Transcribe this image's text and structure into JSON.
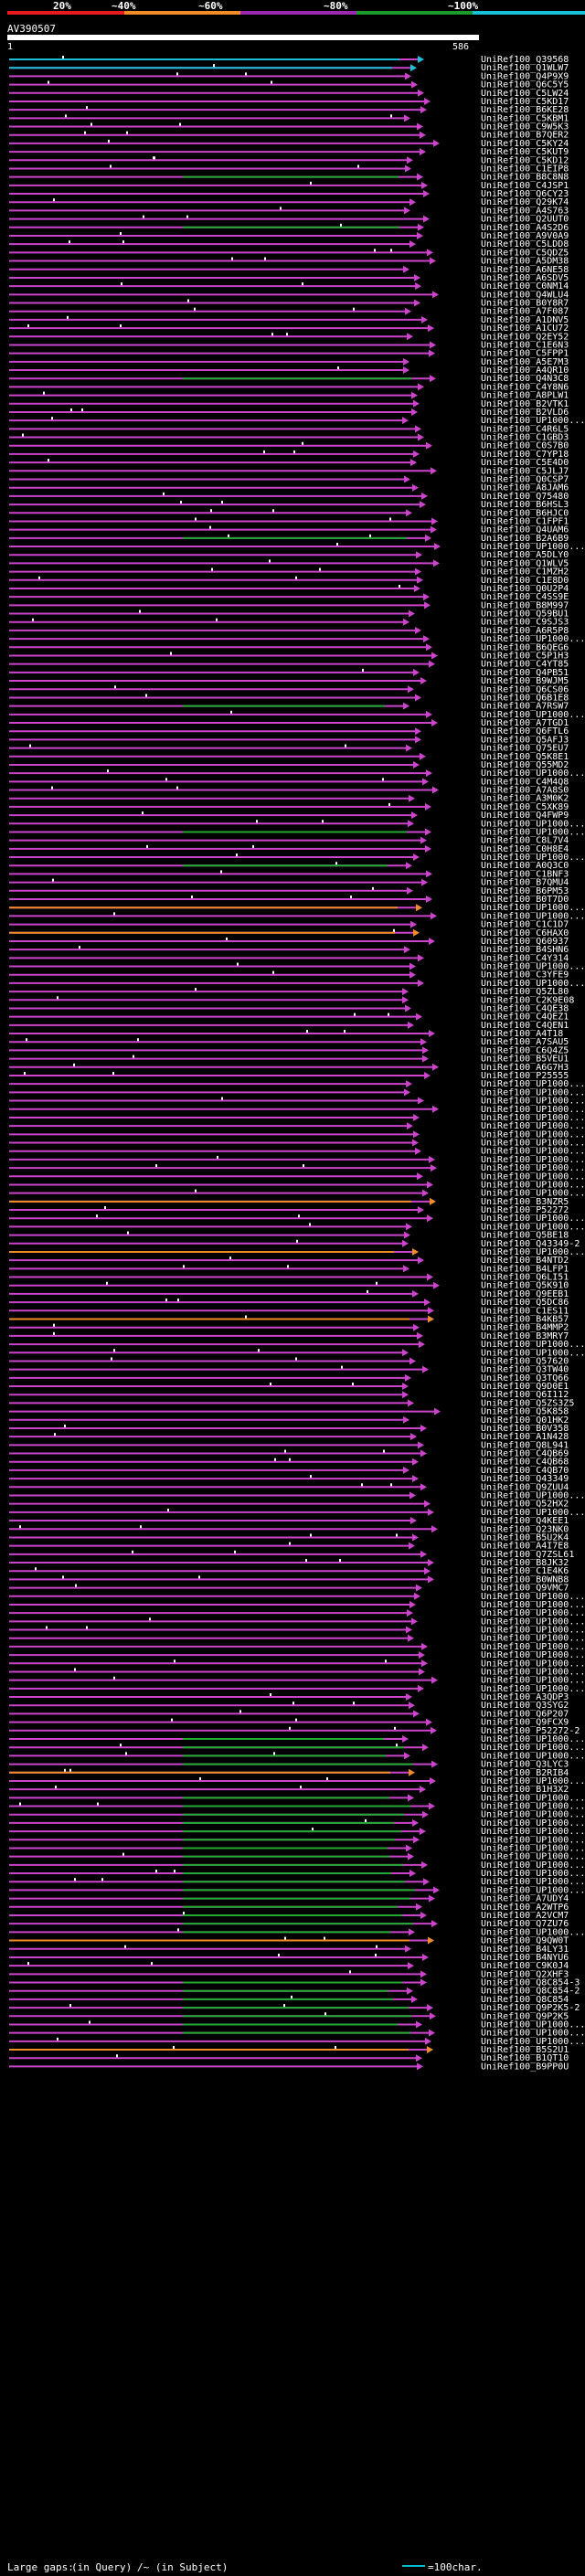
{
  "legend": {
    "labels": [
      "20%",
      "~40%",
      "~60%",
      "~80%",
      "~100%"
    ],
    "colors": [
      "#e8191f",
      "#f28c28",
      "#9c27b0",
      "#1a9c2a",
      "#1ac0d8"
    ]
  },
  "query": {
    "id": "AV390507",
    "start": "1",
    "end": "586"
  },
  "hit_colors": {
    "20": "#e8191f",
    "40": "#f28c28",
    "60": "#cc44cc",
    "80": "#22aa33",
    "100": "#1ac0d8"
  },
  "hits": [
    {
      "id": "UniRef100_Q39568",
      "c": "100"
    },
    {
      "id": "UniRef100_Q1WLW7",
      "c": "100"
    },
    {
      "id": "UniRef100_Q4P9X9",
      "c": "60"
    },
    {
      "id": "UniRef100_Q6C5Y5",
      "c": "60"
    },
    {
      "id": "UniRef100_C5LW24",
      "c": "60"
    },
    {
      "id": "UniRef100_C5KD17",
      "c": "60"
    },
    {
      "id": "UniRef100_B6KE28",
      "c": "60"
    },
    {
      "id": "UniRef100_C5KBM1",
      "c": "60"
    },
    {
      "id": "UniRef100_C9W5K3",
      "c": "60"
    },
    {
      "id": "UniRef100_B7QER2",
      "c": "60"
    },
    {
      "id": "UniRef100_C5KY24",
      "c": "60"
    },
    {
      "id": "UniRef100_C5KUT9",
      "c": "60"
    },
    {
      "id": "UniRef100_C5KD12",
      "c": "60"
    },
    {
      "id": "UniRef100_C1EIP8",
      "c": "60"
    },
    {
      "id": "UniRef100_B8C8N8",
      "c": "80"
    },
    {
      "id": "UniRef100_C4JSP1",
      "c": "60"
    },
    {
      "id": "UniRef100_Q6CY23",
      "c": "60"
    },
    {
      "id": "UniRef100_Q29K74",
      "c": "60"
    },
    {
      "id": "UniRef100_A4S763",
      "c": "60"
    },
    {
      "id": "UniRef100_Q2UUT0",
      "c": "60"
    },
    {
      "id": "UniRef100_A4S2D6",
      "c": "80"
    },
    {
      "id": "UniRef100_A9V0A9",
      "c": "60"
    },
    {
      "id": "UniRef100_C5LDD8",
      "c": "60"
    },
    {
      "id": "UniRef100_C5QDZ5",
      "c": "60"
    },
    {
      "id": "UniRef100_A5DM38",
      "c": "60"
    },
    {
      "id": "UniRef100_A6NE58",
      "c": "60"
    },
    {
      "id": "UniRef100_A6SDV5",
      "c": "60"
    },
    {
      "id": "UniRef100_C0NM14",
      "c": "60"
    },
    {
      "id": "UniRef100_Q4WLU4",
      "c": "60"
    },
    {
      "id": "UniRef100_B0Y8R7",
      "c": "60"
    },
    {
      "id": "UniRef100_A7F087",
      "c": "60"
    },
    {
      "id": "UniRef100_A1DNV5",
      "c": "60"
    },
    {
      "id": "UniRef100_A1CU72",
      "c": "60"
    },
    {
      "id": "UniRef100_Q2EY52",
      "c": "60"
    },
    {
      "id": "UniRef100_C1E6N3",
      "c": "60"
    },
    {
      "id": "UniRef100_C5FPP1",
      "c": "60"
    },
    {
      "id": "UniRef100_A5E7M3",
      "c": "60"
    },
    {
      "id": "UniRef100_A4QR10",
      "c": "60"
    },
    {
      "id": "UniRef100_Q4N3C8",
      "c": "80"
    },
    {
      "id": "UniRef100_C4Y8N6",
      "c": "60"
    },
    {
      "id": "UniRef100_A8PLW1",
      "c": "60"
    },
    {
      "id": "UniRef100_B2VTK1",
      "c": "60"
    },
    {
      "id": "UniRef100_B2VLD6",
      "c": "60"
    },
    {
      "id": "UniRef100_UP1000...",
      "c": "60"
    },
    {
      "id": "UniRef100_C4R6L5",
      "c": "60"
    },
    {
      "id": "UniRef100_C1GBD3",
      "c": "60"
    },
    {
      "id": "UniRef100_C0S7B0",
      "c": "60"
    },
    {
      "id": "UniRef100_C7YP18",
      "c": "60"
    },
    {
      "id": "UniRef100_C5E4D0",
      "c": "60"
    },
    {
      "id": "UniRef100_C5JLJ7",
      "c": "60"
    },
    {
      "id": "UniRef100_Q0CSP7",
      "c": "60"
    },
    {
      "id": "UniRef100_A8JAM6",
      "c": "60"
    },
    {
      "id": "UniRef100_Q75480",
      "c": "60"
    },
    {
      "id": "UniRef100_B6HSL3",
      "c": "60"
    },
    {
      "id": "UniRef100_B6HJC0",
      "c": "60"
    },
    {
      "id": "UniRef100_C1FPF1",
      "c": "60"
    },
    {
      "id": "UniRef100_Q4UAM6",
      "c": "60"
    },
    {
      "id": "UniRef100_B2A6B9",
      "c": "80"
    },
    {
      "id": "UniRef100_UP1000...",
      "c": "60"
    },
    {
      "id": "UniRef100_A5DLY0",
      "c": "60"
    },
    {
      "id": "UniRef100_Q1WLV5",
      "c": "60"
    },
    {
      "id": "UniRef100_C1MZH2",
      "c": "60"
    },
    {
      "id": "UniRef100_C1E8D0",
      "c": "60"
    },
    {
      "id": "UniRef100_Q0U2P4",
      "c": "60"
    },
    {
      "id": "UniRef100_C4SS9E",
      "c": "60"
    },
    {
      "id": "UniRef100_B8M997",
      "c": "60"
    },
    {
      "id": "UniRef100_Q59BU1",
      "c": "60"
    },
    {
      "id": "UniRef100_C9SJS3",
      "c": "60"
    },
    {
      "id": "UniRef100_A6R5P8",
      "c": "60"
    },
    {
      "id": "UniRef100_UP1000...",
      "c": "60"
    },
    {
      "id": "UniRef100_B6QEG6",
      "c": "60"
    },
    {
      "id": "UniRef100_C5P1H3",
      "c": "60"
    },
    {
      "id": "UniRef100_C4YT85",
      "c": "60"
    },
    {
      "id": "UniRef100_Q4PB51",
      "c": "60"
    },
    {
      "id": "UniRef100_B9WJM5",
      "c": "60"
    },
    {
      "id": "UniRef100_Q6CS06",
      "c": "60"
    },
    {
      "id": "UniRef100_Q6B1E8",
      "c": "60"
    },
    {
      "id": "UniRef100_A7RSW7",
      "c": "80"
    },
    {
      "id": "UniRef100_UP1000...",
      "c": "60"
    },
    {
      "id": "UniRef100_A7TGD1",
      "c": "60"
    },
    {
      "id": "UniRef100_Q6FTL6",
      "c": "60"
    },
    {
      "id": "UniRef100_Q5AFJ3",
      "c": "60"
    },
    {
      "id": "UniRef100_Q75EU7",
      "c": "60"
    },
    {
      "id": "UniRef100_Q5K8E1",
      "c": "60"
    },
    {
      "id": "UniRef100_Q55MD2",
      "c": "60"
    },
    {
      "id": "UniRef100_UP1000...",
      "c": "60"
    },
    {
      "id": "UniRef100_C4M4Q8",
      "c": "60"
    },
    {
      "id": "UniRef100_A7A8S0",
      "c": "60"
    },
    {
      "id": "UniRef100_A3M0K2",
      "c": "60"
    },
    {
      "id": "UniRef100_C5XK89",
      "c": "60"
    },
    {
      "id": "UniRef100_Q4FWP9",
      "c": "60"
    },
    {
      "id": "UniRef100_UP1000...",
      "c": "60"
    },
    {
      "id": "UniRef100_UP1000...",
      "c": "80"
    },
    {
      "id": "UniRef100_C8L7V4",
      "c": "60"
    },
    {
      "id": "UniRef100_C0H8E4",
      "c": "60"
    },
    {
      "id": "UniRef100_UP1000...",
      "c": "60"
    },
    {
      "id": "UniRef100_A0Q3C0",
      "c": "80"
    },
    {
      "id": "UniRef100_C1BNF3",
      "c": "60"
    },
    {
      "id": "UniRef100_B7QMU4",
      "c": "60"
    },
    {
      "id": "UniRef100_B6PM53",
      "c": "60"
    },
    {
      "id": "UniRef100_B0T7D0",
      "c": "60"
    },
    {
      "id": "UniRef100_UP1000...",
      "c": "40"
    },
    {
      "id": "UniRef100_UP1000...",
      "c": "60"
    },
    {
      "id": "UniRef100_C1C1D7",
      "c": "60"
    },
    {
      "id": "UniRef100_C6HAX0",
      "c": "40"
    },
    {
      "id": "UniRef100_Q60937",
      "c": "60"
    },
    {
      "id": "UniRef100_B4SHN6",
      "c": "60"
    },
    {
      "id": "UniRef100_C4Y314",
      "c": "60"
    },
    {
      "id": "UniRef100_UP1000...",
      "c": "60"
    },
    {
      "id": "UniRef100_C3YFE9",
      "c": "60"
    },
    {
      "id": "UniRef100_UP1000...",
      "c": "60"
    },
    {
      "id": "UniRef100_Q5ZL80",
      "c": "60"
    },
    {
      "id": "UniRef100_C2K9E08",
      "c": "60"
    },
    {
      "id": "UniRef100_C4QE38",
      "c": "60"
    },
    {
      "id": "UniRef100_C4QEZ1",
      "c": "60"
    },
    {
      "id": "UniRef100_C4QEN1",
      "c": "60"
    },
    {
      "id": "UniRef100_A4T18",
      "c": "60"
    },
    {
      "id": "UniRef100_A7SAU5",
      "c": "60"
    },
    {
      "id": "UniRef100_C6Q4Z5",
      "c": "60"
    },
    {
      "id": "UniRef100_B5VEU1",
      "c": "60"
    },
    {
      "id": "UniRef100_A6G7H3",
      "c": "60"
    },
    {
      "id": "UniRef100_P25555",
      "c": "60"
    },
    {
      "id": "UniRef100_UP1000...",
      "c": "60"
    },
    {
      "id": "UniRef100_UP1000...",
      "c": "60"
    },
    {
      "id": "UniRef100_UP1000...",
      "c": "60"
    },
    {
      "id": "UniRef100_UP1000...",
      "c": "60"
    },
    {
      "id": "UniRef100_UP1000...",
      "c": "60"
    },
    {
      "id": "UniRef100_UP1000...",
      "c": "60"
    },
    {
      "id": "UniRef100_UP1000...",
      "c": "60"
    },
    {
      "id": "UniRef100_UP1000...",
      "c": "60"
    },
    {
      "id": "UniRef100_UP1000...",
      "c": "60"
    },
    {
      "id": "UniRef100_UP1000...",
      "c": "60"
    },
    {
      "id": "UniRef100_UP1000...",
      "c": "60"
    },
    {
      "id": "UniRef100_UP1000...",
      "c": "60"
    },
    {
      "id": "UniRef100_UP1000...",
      "c": "60"
    },
    {
      "id": "UniRef100_UP1000...",
      "c": "60"
    },
    {
      "id": "UniRef100_B3NZR5",
      "c": "40"
    },
    {
      "id": "UniRef100_P52272",
      "c": "60"
    },
    {
      "id": "UniRef100_UP1000...",
      "c": "60"
    },
    {
      "id": "UniRef100_UP1000...",
      "c": "60"
    },
    {
      "id": "UniRef100_Q5BE18",
      "c": "60"
    },
    {
      "id": "UniRef100_Q43349-2",
      "c": "60"
    },
    {
      "id": "UniRef100_UP1000...",
      "c": "40"
    },
    {
      "id": "UniRef100_B4NTD2",
      "c": "60"
    },
    {
      "id": "UniRef100_B4LFP1",
      "c": "60"
    },
    {
      "id": "UniRef100_Q6LI51",
      "c": "60"
    },
    {
      "id": "UniRef100_Q5K910",
      "c": "60"
    },
    {
      "id": "UniRef100_Q9EEB1",
      "c": "60"
    },
    {
      "id": "UniRef100_Q5DC86",
      "c": "60"
    },
    {
      "id": "UniRef100_C1ES11",
      "c": "60"
    },
    {
      "id": "UniRef100_B4KB57",
      "c": "40"
    },
    {
      "id": "UniRef100_B4MMP2",
      "c": "60"
    },
    {
      "id": "UniRef100_B3MRY7",
      "c": "60"
    },
    {
      "id": "UniRef100_UP1000...",
      "c": "60"
    },
    {
      "id": "UniRef100_UP1000...",
      "c": "60"
    },
    {
      "id": "UniRef100_Q57620",
      "c": "60"
    },
    {
      "id": "UniRef100_Q3TW40",
      "c": "60"
    },
    {
      "id": "UniRef100_Q3TQ66",
      "c": "60"
    },
    {
      "id": "UniRef100_Q9D0E1",
      "c": "60"
    },
    {
      "id": "UniRef100_Q6I112",
      "c": "60"
    },
    {
      "id": "UniRef100_Q5ZS3Z5",
      "c": "60"
    },
    {
      "id": "UniRef100_Q5K858",
      "c": "60"
    },
    {
      "id": "UniRef100_Q01HK2",
      "c": "60"
    },
    {
      "id": "UniRef100_B0V358",
      "c": "60"
    },
    {
      "id": "UniRef100_A1N428",
      "c": "60"
    },
    {
      "id": "UniRef100_Q8L941",
      "c": "60"
    },
    {
      "id": "UniRef100_C4QB69",
      "c": "60"
    },
    {
      "id": "UniRef100_C4QB68",
      "c": "60"
    },
    {
      "id": "UniRef100_C4QB70",
      "c": "60"
    },
    {
      "id": "UniRef100_Q43349",
      "c": "60"
    },
    {
      "id": "UniRef100_Q9ZUU4",
      "c": "60"
    },
    {
      "id": "UniRef100_UP1000...",
      "c": "60"
    },
    {
      "id": "UniRef100_Q52HX2",
      "c": "60"
    },
    {
      "id": "UniRef100_UP1000...",
      "c": "60"
    },
    {
      "id": "UniRef100_Q4KEE1",
      "c": "60"
    },
    {
      "id": "UniRef100_Q23NK0",
      "c": "60"
    },
    {
      "id": "UniRef100_B5U2K4",
      "c": "60"
    },
    {
      "id": "UniRef100_A4I7E8",
      "c": "60"
    },
    {
      "id": "UniRef100_Q7ZSL61",
      "c": "60"
    },
    {
      "id": "UniRef100_B8JK32",
      "c": "60"
    },
    {
      "id": "UniRef100_C1E4K6",
      "c": "60"
    },
    {
      "id": "UniRef100_B0WNB8",
      "c": "60"
    },
    {
      "id": "UniRef100_Q9VMC7",
      "c": "60"
    },
    {
      "id": "UniRef100_UP1000...",
      "c": "60"
    },
    {
      "id": "UniRef100_UP1000...",
      "c": "60"
    },
    {
      "id": "UniRef100_UP1000...",
      "c": "60"
    },
    {
      "id": "UniRef100_UP1000...",
      "c": "60"
    },
    {
      "id": "UniRef100_UP1000...",
      "c": "60"
    },
    {
      "id": "UniRef100_UP1000...",
      "c": "60"
    },
    {
      "id": "UniRef100_UP1000...",
      "c": "60"
    },
    {
      "id": "UniRef100_UP1000...",
      "c": "60"
    },
    {
      "id": "UniRef100_UP1000...",
      "c": "60"
    },
    {
      "id": "UniRef100_UP1000...",
      "c": "60"
    },
    {
      "id": "UniRef100_UP1000...",
      "c": "60"
    },
    {
      "id": "UniRef100_UP1000...",
      "c": "60"
    },
    {
      "id": "UniRef100_A3QDP3",
      "c": "60"
    },
    {
      "id": "UniRef100_Q3SYG2",
      "c": "60"
    },
    {
      "id": "UniRef100_Q6P207",
      "c": "60"
    },
    {
      "id": "UniRef100_Q9FCX9",
      "c": "60"
    },
    {
      "id": "UniRef100_P52272-2",
      "c": "60"
    },
    {
      "id": "UniRef100_UP1000...",
      "c": "80"
    },
    {
      "id": "UniRef100_UP1000...",
      "c": "80"
    },
    {
      "id": "UniRef100_UP1000...",
      "c": "80"
    },
    {
      "id": "UniRef100_Q3LYC3",
      "c": "80"
    },
    {
      "id": "UniRef100_B2RIB4",
      "c": "40"
    },
    {
      "id": "UniRef100_UP1000...",
      "c": "60"
    },
    {
      "id": "UniRef100_B1H3X2",
      "c": "60"
    },
    {
      "id": "UniRef100_UP1000...",
      "c": "80"
    },
    {
      "id": "UniRef100_UP1000...",
      "c": "80"
    },
    {
      "id": "UniRef100_UP1000...",
      "c": "80"
    },
    {
      "id": "UniRef100_UP1000...",
      "c": "80"
    },
    {
      "id": "UniRef100_UP1000...",
      "c": "80"
    },
    {
      "id": "UniRef100_UP1000...",
      "c": "80"
    },
    {
      "id": "UniRef100_UP1000...",
      "c": "80"
    },
    {
      "id": "UniRef100_UP1000...",
      "c": "80"
    },
    {
      "id": "UniRef100_UP1000...",
      "c": "80"
    },
    {
      "id": "UniRef100_UP1000...",
      "c": "80"
    },
    {
      "id": "UniRef100_UP1000...",
      "c": "80"
    },
    {
      "id": "UniRef100_UP1000...",
      "c": "80"
    },
    {
      "id": "UniRef100_A7UDY4",
      "c": "80"
    },
    {
      "id": "UniRef100_A2WTP6",
      "c": "80"
    },
    {
      "id": "UniRef100_A2VCM7",
      "c": "80"
    },
    {
      "id": "UniRef100_Q7ZU76",
      "c": "80"
    },
    {
      "id": "UniRef100_UP1000...",
      "c": "80"
    },
    {
      "id": "UniRef100_Q9QW0T",
      "c": "40"
    },
    {
      "id": "UniRef100_B4LY31",
      "c": "60"
    },
    {
      "id": "UniRef100_B4NYU6",
      "c": "60"
    },
    {
      "id": "UniRef100_C9K0J4",
      "c": "60"
    },
    {
      "id": "UniRef100_Q2XHF3",
      "c": "60"
    },
    {
      "id": "UniRef100_Q8C854-3",
      "c": "80"
    },
    {
      "id": "UniRef100_Q8C854-2",
      "c": "80"
    },
    {
      "id": "UniRef100_Q8C854",
      "c": "80"
    },
    {
      "id": "UniRef100_Q9P2K5-2",
      "c": "80"
    },
    {
      "id": "UniRef100_Q9P2K5",
      "c": "80"
    },
    {
      "id": "UniRef100_UP1000...",
      "c": "80"
    },
    {
      "id": "UniRef100_UP1000...",
      "c": "80"
    },
    {
      "id": "UniRef100_UP1000...",
      "c": "60"
    },
    {
      "id": "UniRef100_B5S2U1",
      "c": "40"
    },
    {
      "id": "UniRef100_B1QT10",
      "c": "60"
    },
    {
      "id": "UniRef100_B9PP0U",
      "c": "60"
    }
  ],
  "footer": {
    "large_gaps_label": "Large gaps:",
    "in_query_label": "(in Query)",
    "in_subject_label": "/~ (in Subject)",
    "scale_label": "=100char."
  }
}
